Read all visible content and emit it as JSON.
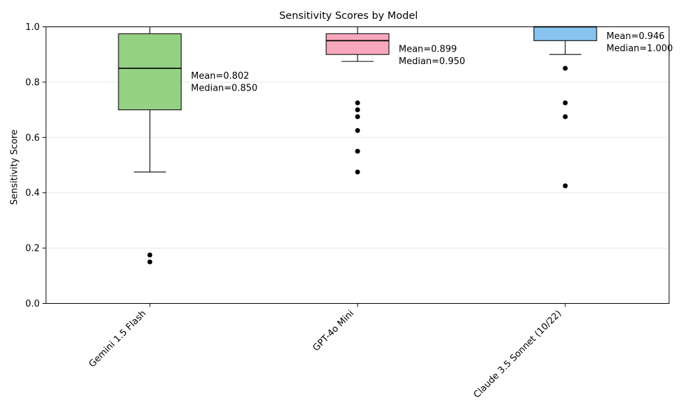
{
  "chart_data": {
    "type": "boxplot",
    "title": "Sensitivity Scores by Model",
    "xlabel": "",
    "ylabel": "Sensitivity Score",
    "ylim": [
      0.0,
      1.0
    ],
    "yticks": [
      "0.0",
      "0.2",
      "0.4",
      "0.6",
      "0.8",
      "1.0"
    ],
    "grid": "horizontal",
    "grid_color": "#e8e8e8",
    "spine_color": "#000000",
    "background_color": "#ffffff",
    "categories": [
      "Gemini 1.5 Flash",
      "GPT-4o Mini",
      "Claude 3.5 Sonnet (10/22)"
    ],
    "series": [
      {
        "label": "Gemini 1.5 Flash",
        "box_color": "#94d183",
        "edge_color": "#1a1a1a",
        "whisker_low": 0.475,
        "q1": 0.7,
        "median": 0.85,
        "q3": 0.975,
        "whisker_high": 1.0,
        "mean": 0.802,
        "outliers": [
          0.175,
          0.15
        ],
        "annotation": [
          "Mean=0.802",
          "Median=0.850"
        ]
      },
      {
        "label": "GPT-4o Mini",
        "box_color": "#f8a8bc",
        "edge_color": "#1a1a1a",
        "whisker_low": 0.875,
        "q1": 0.9,
        "median": 0.95,
        "q3": 0.975,
        "whisker_high": 1.0,
        "mean": 0.899,
        "outliers": [
          0.725,
          0.7,
          0.675,
          0.625,
          0.55,
          0.475
        ],
        "annotation": [
          "Mean=0.899",
          "Median=0.950"
        ]
      },
      {
        "label": "Claude 3.5 Sonnet (10/22)",
        "box_color": "#86c3ee",
        "edge_color": "#1a1a1a",
        "whisker_low": 0.9,
        "q1": 0.95,
        "median": 1.0,
        "q3": 1.0,
        "whisker_high": 1.0,
        "mean": 0.946,
        "outliers": [
          0.85,
          0.725,
          0.675,
          0.425
        ],
        "annotation": [
          "Mean=0.946",
          "Median=1.000"
        ]
      }
    ]
  }
}
